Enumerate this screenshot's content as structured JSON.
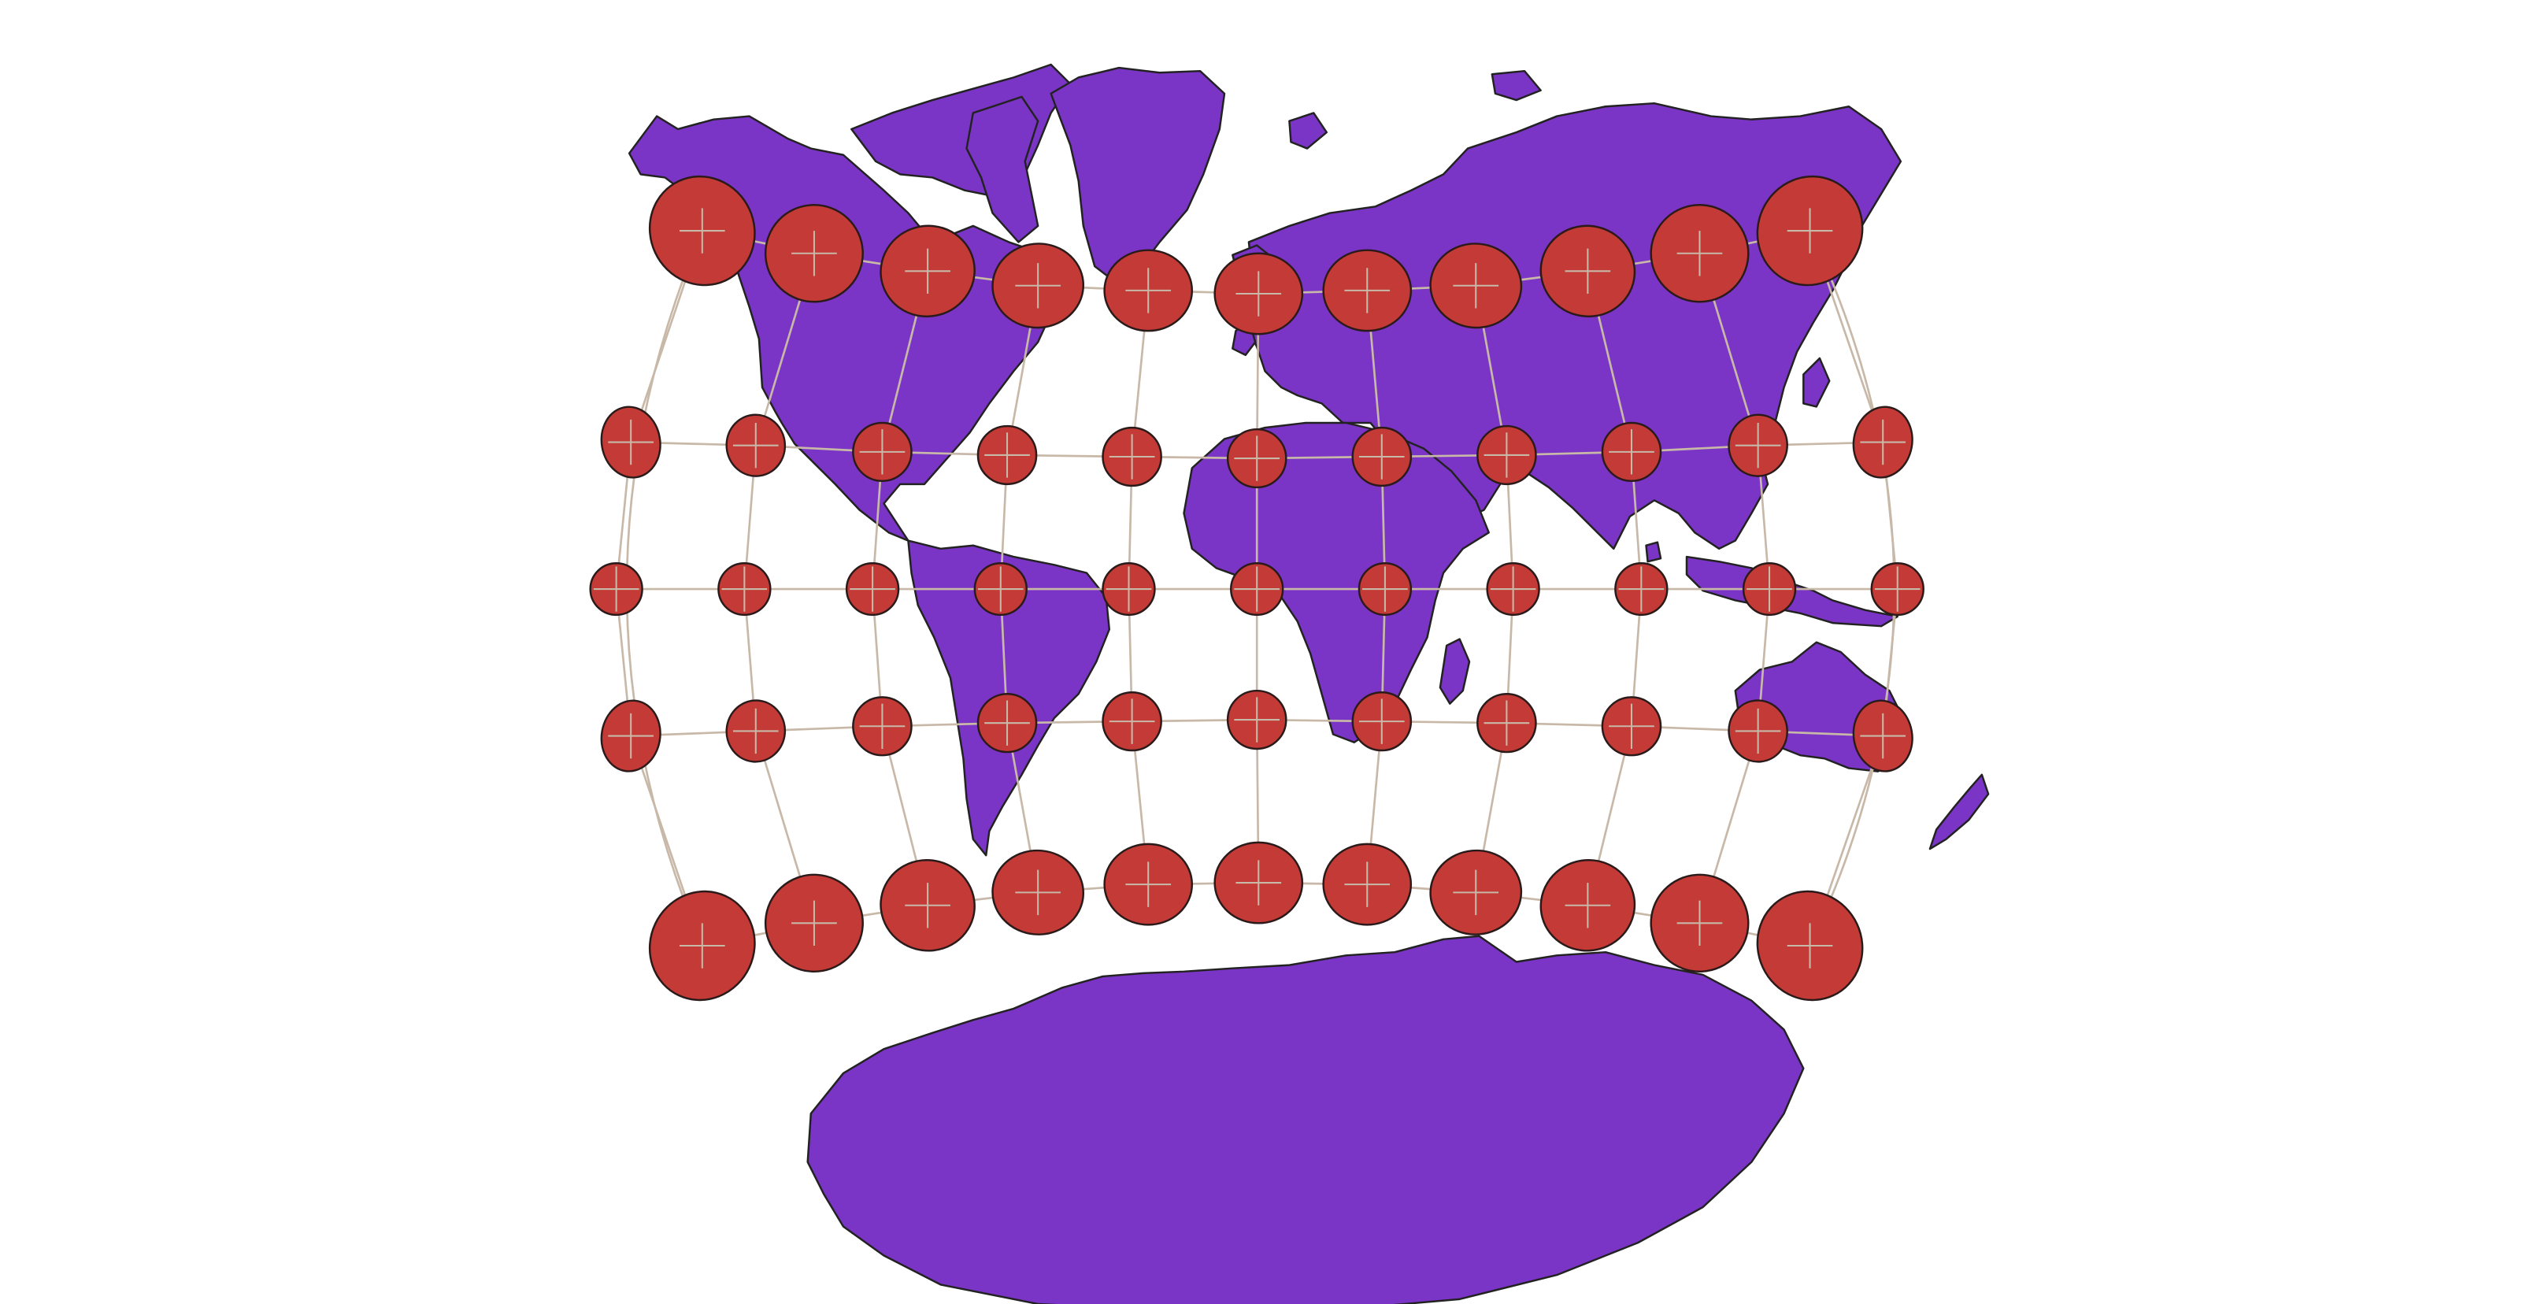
{
  "map": {
    "projection": "transverse-mercator-like",
    "indicatrix": "tissot",
    "colors": {
      "background": "#ffffff",
      "land": "#7b35c6",
      "land_stroke": "#222222",
      "ellipse_fill": "#c33a36",
      "ellipse_stroke": "#2a1a1a",
      "graticule": "#c8b8a8"
    },
    "graticule": {
      "longitudes_deg": [
        -180,
        -150,
        -120,
        -90,
        -60,
        -30,
        0,
        30,
        60,
        90,
        120,
        150,
        180
      ],
      "latitudes_deg": [
        60,
        30,
        0,
        -30,
        -60
      ]
    },
    "indicatrix_grid": {
      "rows": 5,
      "cols": 11
    }
  }
}
